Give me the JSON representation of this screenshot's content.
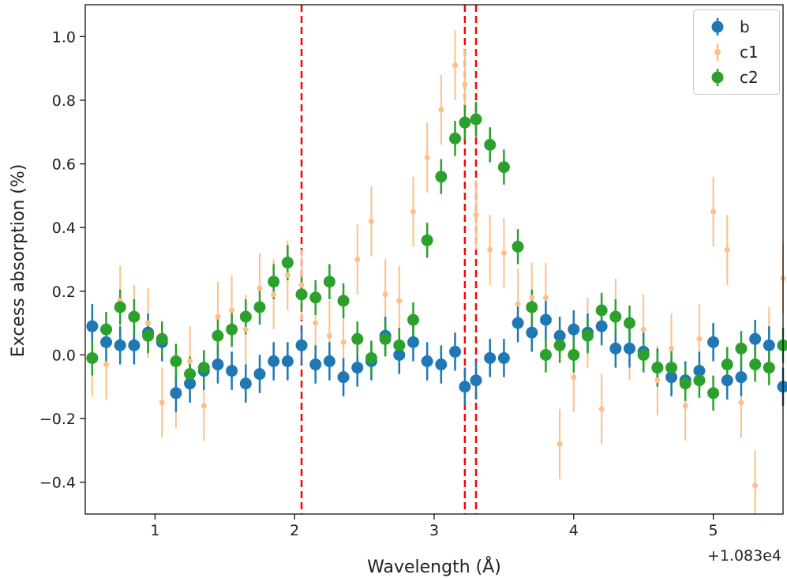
{
  "chart_data": {
    "type": "scatter",
    "xlabel": "Wavelength (Å)",
    "ylabel": "Excess absorption (%)",
    "offset_text": "+1.083e4",
    "xlim": [
      0.5,
      5.5
    ],
    "ylim": [
      -0.5,
      1.1
    ],
    "xticks": [
      1,
      2,
      3,
      4,
      5
    ],
    "xtick_labels": [
      "1",
      "2",
      "3",
      "4",
      "5"
    ],
    "yticks": [
      -0.4,
      -0.2,
      0.0,
      0.2,
      0.4,
      0.6,
      0.8,
      1.0
    ],
    "ytick_labels": [
      "−0.4",
      "−0.2",
      "0.0",
      "0.2",
      "0.4",
      "0.6",
      "0.8",
      "1.0"
    ],
    "vlines": [
      2.05,
      3.22,
      3.3
    ],
    "vline_color": "#ff0000",
    "legend_position": "top-right",
    "series": [
      {
        "name": "b",
        "color": "#1f77b4",
        "marker": "large",
        "x": [
          0.55,
          0.65,
          0.75,
          0.85,
          0.95,
          1.05,
          1.15,
          1.25,
          1.35,
          1.45,
          1.55,
          1.65,
          1.75,
          1.85,
          1.95,
          2.05,
          2.15,
          2.25,
          2.35,
          2.45,
          2.55,
          2.65,
          2.75,
          2.85,
          2.95,
          3.05,
          3.15,
          3.22,
          3.3,
          3.4,
          3.5,
          3.6,
          3.7,
          3.8,
          3.9,
          4.0,
          4.1,
          4.2,
          4.3,
          4.4,
          4.5,
          4.6,
          4.7,
          4.8,
          4.9,
          5.0,
          5.1,
          5.2,
          5.3,
          5.4,
          5.5
        ],
        "y": [
          0.09,
          0.04,
          0.03,
          0.03,
          0.07,
          0.04,
          -0.12,
          -0.09,
          -0.05,
          -0.03,
          -0.05,
          -0.09,
          -0.06,
          -0.02,
          -0.02,
          0.03,
          -0.03,
          -0.02,
          -0.07,
          -0.04,
          -0.02,
          0.06,
          0.0,
          0.04,
          -0.02,
          -0.03,
          0.01,
          -0.1,
          -0.08,
          -0.01,
          -0.01,
          0.1,
          0.07,
          0.11,
          0.06,
          0.08,
          0.07,
          0.09,
          0.02,
          0.02,
          0.01,
          -0.04,
          -0.07,
          -0.08,
          -0.05,
          0.04,
          -0.08,
          -0.07,
          0.05,
          0.03,
          -0.1
        ],
        "yerr": [
          0.07,
          0.06,
          0.06,
          0.06,
          0.06,
          0.06,
          0.06,
          0.06,
          0.06,
          0.06,
          0.06,
          0.06,
          0.06,
          0.06,
          0.06,
          0.06,
          0.06,
          0.06,
          0.06,
          0.06,
          0.06,
          0.06,
          0.06,
          0.06,
          0.06,
          0.06,
          0.06,
          0.06,
          0.06,
          0.06,
          0.06,
          0.06,
          0.06,
          0.06,
          0.06,
          0.06,
          0.06,
          0.06,
          0.06,
          0.06,
          0.06,
          0.06,
          0.06,
          0.06,
          0.06,
          0.06,
          0.06,
          0.06,
          0.06,
          0.06,
          0.06
        ]
      },
      {
        "name": "c1",
        "color": "#ff7f0e",
        "marker": "small",
        "x": [
          0.55,
          0.65,
          0.75,
          0.85,
          0.95,
          1.05,
          1.15,
          1.25,
          1.35,
          1.45,
          1.55,
          1.65,
          1.75,
          1.85,
          1.95,
          2.05,
          2.15,
          2.25,
          2.35,
          2.45,
          2.55,
          2.65,
          2.75,
          2.85,
          2.95,
          3.05,
          3.15,
          3.22,
          3.3,
          3.4,
          3.5,
          3.6,
          3.7,
          3.8,
          3.9,
          4.0,
          4.1,
          4.2,
          4.3,
          4.4,
          4.5,
          4.6,
          4.7,
          4.8,
          4.9,
          5.0,
          5.1,
          5.2,
          5.3,
          5.4,
          5.5
        ],
        "y": [
          -0.02,
          -0.03,
          0.17,
          0.11,
          0.1,
          -0.15,
          -0.12,
          -0.02,
          -0.16,
          0.12,
          0.14,
          0.08,
          0.21,
          0.19,
          0.25,
          0.22,
          0.1,
          0.06,
          0.04,
          0.3,
          0.42,
          0.19,
          0.17,
          0.45,
          0.62,
          0.77,
          0.91,
          0.85,
          0.44,
          0.33,
          0.32,
          0.16,
          0.18,
          0.18,
          -0.28,
          -0.07,
          0.07,
          -0.17,
          0.13,
          0.03,
          0.08,
          -0.08,
          0.02,
          -0.16,
          0.05,
          0.45,
          0.33,
          -0.15,
          -0.41,
          0.04,
          0.24
        ]
      },
      {
        "name": "c2",
        "color": "#2ca02c",
        "marker": "large",
        "x": [
          0.55,
          0.65,
          0.75,
          0.85,
          0.95,
          1.05,
          1.15,
          1.25,
          1.35,
          1.45,
          1.55,
          1.65,
          1.75,
          1.85,
          1.95,
          2.05,
          2.15,
          2.25,
          2.35,
          2.45,
          2.55,
          2.65,
          2.75,
          2.85,
          2.95,
          3.05,
          3.15,
          3.22,
          3.3,
          3.4,
          3.5,
          3.6,
          3.7,
          3.8,
          3.9,
          4.0,
          4.1,
          4.2,
          4.3,
          4.4,
          4.5,
          4.6,
          4.7,
          4.8,
          4.9,
          5.0,
          5.1,
          5.2,
          5.3,
          5.4,
          5.5
        ],
        "y": [
          -0.01,
          0.08,
          0.15,
          0.12,
          0.06,
          0.05,
          -0.02,
          -0.06,
          -0.04,
          0.06,
          0.08,
          0.12,
          0.15,
          0.23,
          0.29,
          0.19,
          0.18,
          0.23,
          0.17,
          0.05,
          -0.01,
          0.05,
          0.03,
          0.11,
          0.36,
          0.56,
          0.68,
          0.73,
          0.74,
          0.66,
          0.59,
          0.34,
          0.15,
          0.0,
          0.03,
          0.0,
          0.06,
          0.14,
          0.12,
          0.1,
          0.0,
          -0.04,
          -0.04,
          -0.09,
          -0.08,
          -0.12,
          -0.03,
          0.02,
          -0.03,
          -0.04,
          0.03
        ]
      }
    ]
  }
}
